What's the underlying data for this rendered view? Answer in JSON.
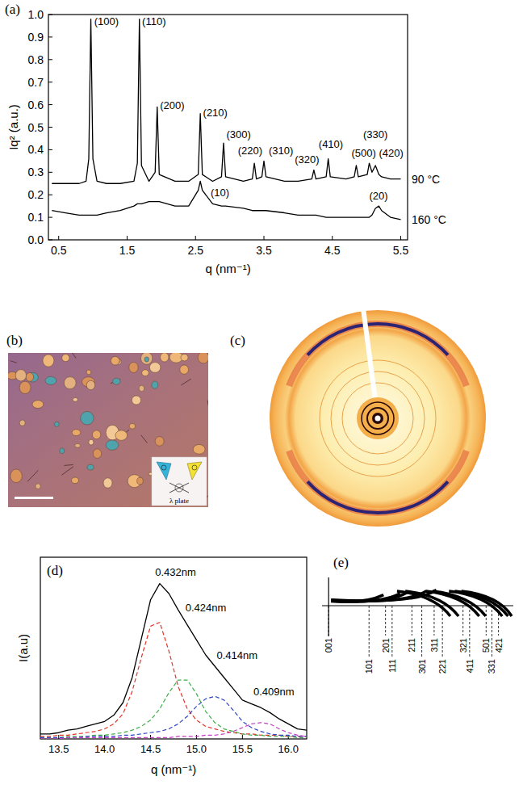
{
  "chart_data": [
    {
      "type": "line",
      "title": "(a)",
      "x_label": "q (nm⁻¹)",
      "y_label": "Iq² (a.u.)",
      "x": [
        0.4,
        0.6,
        0.8,
        0.9,
        0.94,
        0.97,
        1.0,
        1.06,
        1.2,
        1.4,
        1.6,
        1.65,
        1.68,
        1.71,
        1.82,
        1.91,
        1.94,
        1.97,
        2.2,
        2.4,
        2.54,
        2.57,
        2.6,
        2.75,
        2.88,
        2.91,
        2.94,
        3.2,
        3.33,
        3.36,
        3.39,
        3.47,
        3.5,
        3.53,
        3.8,
        4.0,
        4.2,
        4.23,
        4.26,
        4.41,
        4.44,
        4.47,
        4.7,
        4.82,
        4.85,
        4.88,
        5.01,
        5.04,
        5.08,
        5.13,
        5.18,
        5.22,
        5.35,
        5.5
      ],
      "series": [
        {
          "name": "90 °C",
          "color": "#000000",
          "line_style": "solid",
          "values": [
            0.25,
            0.25,
            0.25,
            0.26,
            0.36,
            0.98,
            0.36,
            0.26,
            0.25,
            0.25,
            0.26,
            0.34,
            0.98,
            0.33,
            0.26,
            0.3,
            0.59,
            0.29,
            0.26,
            0.26,
            0.29,
            0.56,
            0.29,
            0.26,
            0.28,
            0.43,
            0.28,
            0.26,
            0.27,
            0.34,
            0.27,
            0.28,
            0.35,
            0.28,
            0.26,
            0.26,
            0.27,
            0.31,
            0.27,
            0.28,
            0.36,
            0.28,
            0.27,
            0.28,
            0.33,
            0.28,
            0.29,
            0.34,
            0.3,
            0.33,
            0.29,
            0.28,
            0.27,
            0.27
          ]
        },
        {
          "name": "160 °C",
          "color": "#000000",
          "line_style": "solid",
          "values": [
            0.13,
            0.12,
            0.11,
            0.11,
            0.11,
            0.11,
            0.11,
            0.11,
            0.12,
            0.13,
            0.15,
            0.16,
            0.16,
            0.16,
            0.17,
            0.17,
            0.17,
            0.17,
            0.15,
            0.15,
            0.22,
            0.26,
            0.22,
            0.16,
            0.15,
            0.15,
            0.15,
            0.14,
            0.13,
            0.13,
            0.13,
            0.13,
            0.13,
            0.13,
            0.12,
            0.11,
            0.11,
            0.11,
            0.11,
            0.1,
            0.1,
            0.1,
            0.1,
            0.1,
            0.1,
            0.1,
            0.1,
            0.1,
            0.11,
            0.14,
            0.15,
            0.13,
            0.1,
            0.09
          ]
        }
      ],
      "xlim": [
        0.35,
        5.6
      ],
      "xticks": [
        0.5,
        1.5,
        2.5,
        3.5,
        4.5,
        5.5
      ],
      "ylim": [
        0,
        1
      ],
      "yticks": [
        {
          "value": 0,
          "label": "0.0"
        },
        0.1,
        0.2,
        0.3,
        0.4,
        0.5,
        0.6,
        0.7,
        0.8,
        0.9,
        {
          "value": 1,
          "label": "1.0"
        }
      ],
      "annotations": [
        {
          "text": "(100)",
          "x": 1.02,
          "y": 0.955
        },
        {
          "text": "(110)",
          "x": 1.72,
          "y": 0.955
        },
        {
          "text": "(200)",
          "x": 1.98,
          "y": 0.58
        },
        {
          "text": "(210)",
          "x": 2.61,
          "y": 0.55
        },
        {
          "text": "(300)",
          "x": 2.95,
          "y": 0.45
        },
        {
          "text": "(220)",
          "x": 3.12,
          "y": 0.38
        },
        {
          "text": "(310)",
          "x": 3.57,
          "y": 0.38
        },
        {
          "text": "(320)",
          "x": 3.95,
          "y": 0.34
        },
        {
          "text": "(410)",
          "x": 4.3,
          "y": 0.41
        },
        {
          "text": "(500)",
          "x": 4.78,
          "y": 0.37
        },
        {
          "text": "(330)",
          "x": 4.95,
          "y": 0.45
        },
        {
          "text": "(420)",
          "x": 5.18,
          "y": 0.37
        },
        {
          "text": "(10)",
          "x": 2.72,
          "y": 0.195
        },
        {
          "text": "(20)",
          "x": 5.04,
          "y": 0.18
        }
      ]
    },
    {
      "type": "line",
      "title": "(d)",
      "x_label": "q (nm⁻¹)",
      "y_label": "I(a.u)",
      "x": [
        13.3,
        13.4,
        13.5,
        13.6,
        13.7,
        13.8,
        13.9,
        14.0,
        14.1,
        14.2,
        14.3,
        14.4,
        14.5,
        14.6,
        14.7,
        14.8,
        14.9,
        15.0,
        15.1,
        15.2,
        15.3,
        15.4,
        15.5,
        15.6,
        15.7,
        15.8,
        15.9,
        16.0,
        16.1,
        16.2
      ],
      "series": [
        {
          "color": "#000000",
          "line_style": "solid",
          "values": [
            0.04,
            0.04,
            0.05,
            0.07,
            0.08,
            0.1,
            0.12,
            0.14,
            0.19,
            0.29,
            0.49,
            0.8,
            1.11,
            1.24,
            1.16,
            1.03,
            0.91,
            0.79,
            0.67,
            0.58,
            0.49,
            0.4,
            0.31,
            0.28,
            0.25,
            0.21,
            0.16,
            0.12,
            0.08,
            0.07
          ]
        },
        {
          "color": "#e3342a",
          "line_style": "dashed",
          "values": [
            0.02,
            0.02,
            0.03,
            0.03,
            0.04,
            0.05,
            0.06,
            0.08,
            0.12,
            0.2,
            0.38,
            0.65,
            0.9,
            0.93,
            0.7,
            0.42,
            0.24,
            0.15,
            0.1,
            0.08,
            0.06,
            0.05,
            0.04,
            0.04,
            0.03,
            0.03,
            0.03,
            0.02,
            0.02,
            0.02
          ]
        },
        {
          "color": "#3fae49",
          "line_style": "dashed",
          "values": [
            0.01,
            0.01,
            0.01,
            0.02,
            0.02,
            0.02,
            0.03,
            0.03,
            0.04,
            0.05,
            0.07,
            0.1,
            0.15,
            0.24,
            0.37,
            0.47,
            0.47,
            0.36,
            0.22,
            0.13,
            0.08,
            0.06,
            0.04,
            0.03,
            0.03,
            0.02,
            0.02,
            0.02,
            0.01,
            0.01
          ]
        },
        {
          "color": "#2f45c2",
          "line_style": "dashed",
          "values": [
            0.01,
            0.01,
            0.01,
            0.01,
            0.01,
            0.02,
            0.02,
            0.02,
            0.02,
            0.03,
            0.03,
            0.04,
            0.05,
            0.06,
            0.08,
            0.12,
            0.18,
            0.26,
            0.32,
            0.34,
            0.31,
            0.23,
            0.14,
            0.09,
            0.06,
            0.04,
            0.03,
            0.03,
            0.02,
            0.02
          ]
        },
        {
          "color": "#c23fc2",
          "line_style": "dashed",
          "values": [
            0,
            0,
            0,
            0.01,
            0.01,
            0.01,
            0.01,
            0.01,
            0.01,
            0.01,
            0.01,
            0.01,
            0.01,
            0.01,
            0.01,
            0.02,
            0.02,
            0.02,
            0.03,
            0.03,
            0.04,
            0.06,
            0.09,
            0.12,
            0.13,
            0.12,
            0.08,
            0.05,
            0.03,
            0.02
          ]
        }
      ],
      "xlim": [
        13.3,
        16.2
      ],
      "xticks": [
        13.5,
        {
          "value": 14,
          "label": "14.0"
        },
        14.5,
        {
          "value": 15,
          "label": "15.0"
        },
        15.5,
        {
          "value": 16,
          "label": "16.0"
        }
      ],
      "ylim": [
        0,
        1.45
      ],
      "yticks": [],
      "tick_labels": "x",
      "annotations": [
        {
          "text": "0.432nm",
          "x": 14.55,
          "y": 1.3
        },
        {
          "text": "0.424nm",
          "x": 14.88,
          "y": 1.02
        },
        {
          "text": "0.414nm",
          "x": 15.22,
          "y": 0.64
        },
        {
          "text": "0.409nm",
          "x": 15.62,
          "y": 0.35
        }
      ]
    },
    {
      "type": "stick",
      "title": "(e)",
      "categories": [
        "001",
        "101",
        "201",
        "111",
        "211",
        "301",
        "311",
        "221",
        "321",
        "411",
        "501",
        "331",
        "421"
      ],
      "x": [
        0,
        24.5,
        34.5,
        38.5,
        50.5,
        56.5,
        64,
        69,
        81.5,
        85.5,
        95.5,
        99,
        103
      ],
      "xlim": [
        -4,
        112
      ]
    }
  ],
  "images": [
    {
      "title": "(b)",
      "inset_text": "λ plate"
    },
    {
      "title": "(c)"
    }
  ]
}
